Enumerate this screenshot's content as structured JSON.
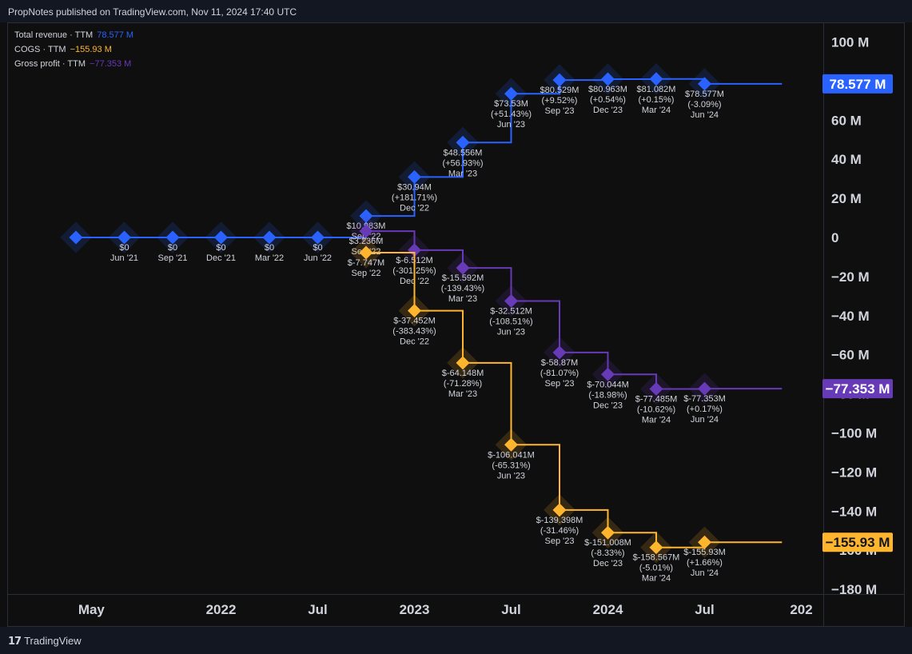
{
  "header": {
    "published": "PropNotes published on TradingView.com, Nov 11, 2024 17:40 UTC"
  },
  "footer": {
    "brand": "TradingView"
  },
  "legend": [
    {
      "name": "Total revenue · TTM",
      "value": "78.577 M",
      "color": "#2962ff"
    },
    {
      "name": "COGS · TTM",
      "value": "−155.93 M",
      "color": "#ffb52e"
    },
    {
      "name": "Gross profit · TTM",
      "value": "−77.353 M",
      "color": "#673ab7"
    }
  ],
  "chart_data": {
    "type": "line",
    "y_ticks": [
      {
        "v": 100,
        "label": "100 M"
      },
      {
        "v": 80,
        "label": "80 M"
      },
      {
        "v": 60,
        "label": "60 M"
      },
      {
        "v": 40,
        "label": "40 M"
      },
      {
        "v": 20,
        "label": "20 M"
      },
      {
        "v": 0,
        "label": "0"
      },
      {
        "v": -20,
        "label": "−20 M"
      },
      {
        "v": -40,
        "label": "−40 M"
      },
      {
        "v": -60,
        "label": "−60 M"
      },
      {
        "v": -80,
        "label": "−80 M"
      },
      {
        "v": -100,
        "label": "−100 M"
      },
      {
        "v": -120,
        "label": "−120 M"
      },
      {
        "v": -140,
        "label": "−140 M"
      },
      {
        "v": -160,
        "label": "−160 M"
      },
      {
        "v": -180,
        "label": "−180 M"
      }
    ],
    "x_ticks": [
      {
        "t": 2021.33,
        "label": "May"
      },
      {
        "t": 2022.0,
        "label": "2022"
      },
      {
        "t": 2022.5,
        "label": "Jul"
      },
      {
        "t": 2023.0,
        "label": "2023"
      },
      {
        "t": 2023.5,
        "label": "Jul"
      },
      {
        "t": 2024.0,
        "label": "2024"
      },
      {
        "t": 2024.5,
        "label": "Jul"
      },
      {
        "t": 2025.0,
        "label": "202"
      }
    ],
    "series": [
      {
        "name": "Total revenue · TTM",
        "color": "#2962ff",
        "last_value": "78.577 M",
        "extend_to": 2024.9,
        "points": [
          {
            "t": 2021.25,
            "v": 0,
            "l": []
          },
          {
            "t": 2021.5,
            "v": 0,
            "l": [
              "$0",
              "Jun '21"
            ]
          },
          {
            "t": 2021.75,
            "v": 0,
            "l": [
              "$0",
              "Sep '21"
            ]
          },
          {
            "t": 2022.0,
            "v": 0,
            "l": [
              "$0",
              "Dec '21"
            ]
          },
          {
            "t": 2022.25,
            "v": 0,
            "l": [
              "$0",
              "Mar '22"
            ]
          },
          {
            "t": 2022.5,
            "v": 0,
            "l": [
              "$0",
              "Jun '22"
            ]
          },
          {
            "t": 2022.75,
            "v": 10.983,
            "l": [
              "$10.983M",
              "Sep '22"
            ]
          },
          {
            "t": 2023.0,
            "v": 30.94,
            "l": [
              "$30.94M",
              "(+181.71%)",
              "Dec '22"
            ]
          },
          {
            "t": 2023.25,
            "v": 48.556,
            "l": [
              "$48.556M",
              "(+56.93%)",
              "Mar '23"
            ]
          },
          {
            "t": 2023.5,
            "v": 73.53,
            "l": [
              "$73.53M",
              "(+51.43%)",
              "Jun '23"
            ]
          },
          {
            "t": 2023.75,
            "v": 80.529,
            "l": [
              "$80.529M",
              "(+9.52%)",
              "Sep '23"
            ]
          },
          {
            "t": 2024.0,
            "v": 80.963,
            "l": [
              "$80.963M",
              "(+0.54%)",
              "Dec '23"
            ]
          },
          {
            "t": 2024.25,
            "v": 81.082,
            "l": [
              "$81.082M",
              "(+0.15%)",
              "Mar '24"
            ]
          },
          {
            "t": 2024.5,
            "v": 78.577,
            "l": [
              "$78.577M",
              "(-3.09%)",
              "Jun '24"
            ]
          }
        ]
      },
      {
        "name": "Gross profit · TTM",
        "color": "#673ab7",
        "last_value": "−77.353 M",
        "extend_to": 2024.9,
        "points": [
          {
            "t": 2022.75,
            "v": 3.236,
            "l": [
              "$3.236M",
              "Sep '22"
            ]
          },
          {
            "t": 2023.0,
            "v": -6.512,
            "l": [
              "$-6.512M",
              "(-301.25%)",
              "Dec '22"
            ]
          },
          {
            "t": 2023.25,
            "v": -15.592,
            "l": [
              "$-15.592M",
              "(-139.43%)",
              "Mar '23"
            ]
          },
          {
            "t": 2023.5,
            "v": -32.512,
            "l": [
              "$-32.512M",
              "(-108.51%)",
              "Jun '23"
            ]
          },
          {
            "t": 2023.75,
            "v": -58.87,
            "l": [
              "$-58.87M",
              "(-81.07%)",
              "Sep '23"
            ]
          },
          {
            "t": 2024.0,
            "v": -70.044,
            "l": [
              "$-70.044M",
              "(-18.98%)",
              "Dec '23"
            ]
          },
          {
            "t": 2024.25,
            "v": -77.485,
            "l": [
              "$-77.485M",
              "(-10.62%)",
              "Mar '24"
            ]
          },
          {
            "t": 2024.5,
            "v": -77.353,
            "l": [
              "$-77.353M",
              "(+0.17%)",
              "Jun '24"
            ]
          }
        ]
      },
      {
        "name": "COGS · TTM",
        "color": "#ffb52e",
        "last_value": "−155.93 M",
        "extend_to": 2024.9,
        "points": [
          {
            "t": 2022.75,
            "v": -7.747,
            "l": [
              "$-7.747M",
              "Sep '22"
            ]
          },
          {
            "t": 2023.0,
            "v": -37.452,
            "l": [
              "$-37.452M",
              "(-383.43%)",
              "Dec '22"
            ]
          },
          {
            "t": 2023.25,
            "v": -64.148,
            "l": [
              "$-64.148M",
              "(-71.28%)",
              "Mar '23"
            ]
          },
          {
            "t": 2023.5,
            "v": -106.041,
            "l": [
              "$-106.041M",
              "(-65.31%)",
              "Jun '23"
            ]
          },
          {
            "t": 2023.75,
            "v": -139.398,
            "l": [
              "$-139.398M",
              "(-31.46%)",
              "Sep '23"
            ]
          },
          {
            "t": 2024.0,
            "v": -151.008,
            "l": [
              "$-151.008M",
              "(-8.33%)",
              "Dec '23"
            ]
          },
          {
            "t": 2024.25,
            "v": -158.567,
            "l": [
              "$-158.567M",
              "(-5.01%)",
              "Mar '24"
            ]
          },
          {
            "t": 2024.5,
            "v": -155.93,
            "l": [
              "$-155.93M",
              "(+1.66%)",
              "Jun '24"
            ]
          }
        ]
      }
    ]
  }
}
